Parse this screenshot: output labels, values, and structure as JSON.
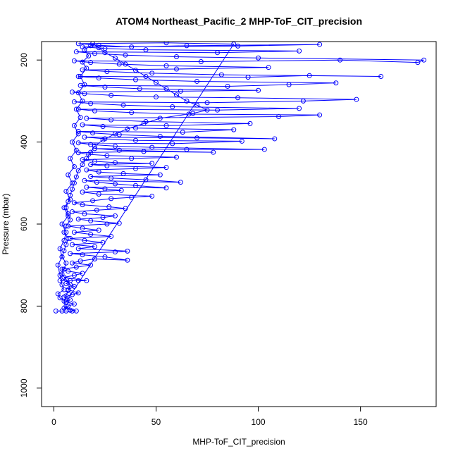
{
  "chart_data": {
    "type": "scatter",
    "title": "ATOM4 Northeast_Pacific_2 MHP-ToF_CIT_precision",
    "xlabel": "MHP-ToF_CIT_precision",
    "ylabel": "Pressure (mbar)",
    "xlim": [
      -6,
      187
    ],
    "ylim": [
      1045,
      155
    ],
    "y_reversed": true,
    "x_ticks": [
      0,
      50,
      100,
      150
    ],
    "y_ticks": [
      200,
      400,
      600,
      800,
      1000
    ],
    "grid": false,
    "legend": "none",
    "marker": "open-circle",
    "connect_points": true,
    "color": "#0000ff",
    "series": [
      {
        "values": [
          [
            1,
            812
          ],
          [
            4,
            812
          ],
          [
            6,
            812
          ],
          [
            9,
            812
          ],
          [
            11,
            812
          ],
          [
            5,
            805
          ],
          [
            7,
            800
          ],
          [
            10,
            795
          ],
          [
            6,
            790
          ],
          [
            8,
            785
          ],
          [
            5,
            778
          ],
          [
            9,
            772
          ],
          [
            12,
            768
          ],
          [
            7,
            760
          ],
          [
            10,
            752
          ],
          [
            6,
            745
          ],
          [
            8,
            738
          ],
          [
            3,
            738
          ],
          [
            12,
            738
          ],
          [
            16,
            738
          ],
          [
            5,
            730
          ],
          [
            10,
            725
          ],
          [
            14,
            720
          ],
          [
            7,
            715
          ],
          [
            4,
            710
          ],
          [
            11,
            705
          ],
          [
            18,
            700
          ],
          [
            9,
            695
          ],
          [
            13,
            690
          ],
          [
            20,
            685
          ],
          [
            36,
            688
          ],
          [
            25,
            680
          ],
          [
            14,
            675
          ],
          [
            8,
            672
          ],
          [
            30,
            668
          ],
          [
            36,
            666
          ],
          [
            12,
            660
          ],
          [
            20,
            655
          ],
          [
            9,
            650
          ],
          [
            24,
            645
          ],
          [
            15,
            640
          ],
          [
            8,
            635
          ],
          [
            28,
            630
          ],
          [
            18,
            625
          ],
          [
            10,
            620
          ],
          [
            22,
            615
          ],
          [
            14,
            610
          ],
          [
            7,
            605
          ],
          [
            26,
            600
          ],
          [
            32,
            598
          ],
          [
            18,
            592
          ],
          [
            12,
            588
          ],
          [
            24,
            584
          ],
          [
            30,
            580
          ],
          [
            15,
            575
          ],
          [
            9,
            570
          ],
          [
            21,
            566
          ],
          [
            35,
            562
          ],
          [
            27,
            558
          ],
          [
            14,
            553
          ],
          [
            10,
            548
          ],
          [
            19,
            543
          ],
          [
            28,
            538
          ],
          [
            38,
            535
          ],
          [
            48,
            532
          ],
          [
            22,
            527
          ],
          [
            14,
            522
          ],
          [
            33,
            518
          ],
          [
            25,
            514
          ],
          [
            16,
            510
          ],
          [
            55,
            512
          ],
          [
            40,
            506
          ],
          [
            30,
            502
          ],
          [
            21,
            498
          ],
          [
            15,
            494
          ],
          [
            62,
            498
          ],
          [
            45,
            492
          ],
          [
            28,
            488
          ],
          [
            18,
            484
          ],
          [
            52,
            480
          ],
          [
            34,
            477
          ],
          [
            22,
            473
          ],
          [
            16,
            468
          ],
          [
            40,
            465
          ],
          [
            55,
            462
          ],
          [
            26,
            458
          ],
          [
            18,
            455
          ],
          [
            48,
            452
          ],
          [
            30,
            450
          ],
          [
            20,
            447
          ],
          [
            14,
            443
          ],
          [
            38,
            440
          ],
          [
            60,
            437
          ],
          [
            26,
            433
          ],
          [
            17,
            430
          ],
          [
            12,
            426
          ],
          [
            44,
            423
          ],
          [
            78,
            425
          ],
          [
            32,
            420
          ],
          [
            20,
            416
          ],
          [
            65,
            418
          ],
          [
            103,
            418
          ],
          [
            48,
            413
          ],
          [
            30,
            410
          ],
          [
            18,
            406
          ],
          [
            12,
            402
          ],
          [
            58,
            404
          ],
          [
            92,
            398
          ],
          [
            40,
            396
          ],
          [
            25,
            392
          ],
          [
            15,
            388
          ],
          [
            70,
            390
          ],
          [
            108,
            392
          ],
          [
            52,
            386
          ],
          [
            32,
            382
          ],
          [
            19,
            378
          ],
          [
            12,
            374
          ],
          [
            63,
            376
          ],
          [
            88,
            370
          ],
          [
            40,
            366
          ],
          [
            24,
            362
          ],
          [
            14,
            358
          ],
          [
            55,
            360
          ],
          [
            96,
            355
          ],
          [
            45,
            350
          ],
          [
            28,
            346
          ],
          [
            16,
            342
          ],
          [
            110,
            338
          ],
          [
            130,
            334
          ],
          [
            66,
            332
          ],
          [
            38,
            328
          ],
          [
            20,
            324
          ],
          [
            12,
            320
          ],
          [
            80,
            322
          ],
          [
            120,
            318
          ],
          [
            58,
            314
          ],
          [
            34,
            310
          ],
          [
            18,
            306
          ],
          [
            10,
            302
          ],
          [
            75,
            304
          ],
          [
            122,
            300
          ],
          [
            148,
            296
          ],
          [
            90,
            292
          ],
          [
            50,
            290
          ],
          [
            28,
            286
          ],
          [
            15,
            282
          ],
          [
            9,
            278
          ],
          [
            62,
            276
          ],
          [
            100,
            274
          ],
          [
            42,
            270
          ],
          [
            25,
            266
          ],
          [
            13,
            262
          ],
          [
            85,
            264
          ],
          [
            115,
            260
          ],
          [
            138,
            256
          ],
          [
            70,
            252
          ],
          [
            40,
            248
          ],
          [
            22,
            244
          ],
          [
            12,
            240
          ],
          [
            95,
            242
          ],
          [
            125,
            238
          ],
          [
            160,
            240
          ],
          [
            82,
            236
          ],
          [
            48,
            232
          ],
          [
            26,
            228
          ],
          [
            14,
            224
          ],
          [
            60,
            222
          ],
          [
            105,
            218
          ],
          [
            55,
            214
          ],
          [
            32,
            210
          ],
          [
            18,
            206
          ],
          [
            10,
            202
          ],
          [
            72,
            204
          ],
          [
            140,
            200
          ],
          [
            178,
            206
          ],
          [
            181,
            200
          ],
          [
            100,
            195
          ],
          [
            60,
            192
          ],
          [
            35,
            188
          ],
          [
            20,
            184
          ],
          [
            11,
            180
          ],
          [
            80,
            182
          ],
          [
            120,
            178
          ],
          [
            45,
            175
          ],
          [
            25,
            172
          ],
          [
            14,
            168
          ],
          [
            90,
            166
          ],
          [
            130,
            162
          ],
          [
            65,
            165
          ],
          [
            38,
            168
          ],
          [
            22,
            164
          ],
          [
            12,
            160
          ],
          [
            55,
            158
          ],
          [
            88,
            161
          ],
          [
            6,
            790
          ],
          [
            3,
            780
          ],
          [
            2,
            770
          ],
          [
            5,
            760
          ],
          [
            4,
            748
          ],
          [
            3,
            725
          ],
          [
            2,
            700
          ],
          [
            4,
            680
          ],
          [
            3,
            660
          ],
          [
            5,
            640
          ],
          [
            6,
            620
          ],
          [
            4,
            600
          ],
          [
            7,
            580
          ],
          [
            5,
            560
          ],
          [
            8,
            540
          ],
          [
            6,
            520
          ],
          [
            9,
            500
          ],
          [
            7,
            480
          ],
          [
            10,
            460
          ],
          [
            8,
            440
          ],
          [
            11,
            420
          ],
          [
            9,
            400
          ],
          [
            12,
            380
          ],
          [
            10,
            360
          ],
          [
            13,
            340
          ],
          [
            11,
            320
          ],
          [
            14,
            300
          ],
          [
            12,
            280
          ],
          [
            15,
            260
          ],
          [
            13,
            240
          ],
          [
            16,
            220
          ],
          [
            14,
            205
          ],
          [
            17,
            190
          ],
          [
            15,
            175
          ],
          [
            18,
            165
          ],
          [
            19,
            160
          ],
          [
            22,
            170
          ],
          [
            25,
            182
          ],
          [
            30,
            195
          ],
          [
            35,
            210
          ],
          [
            40,
            225
          ],
          [
            45,
            240
          ],
          [
            50,
            255
          ],
          [
            55,
            270
          ],
          [
            60,
            285
          ],
          [
            65,
            300
          ],
          [
            70,
            310
          ],
          [
            75,
            322
          ],
          [
            68,
            330
          ],
          [
            52,
            342
          ],
          [
            44,
            355
          ],
          [
            36,
            368
          ],
          [
            30,
            380
          ],
          [
            24,
            395
          ],
          [
            20,
            410
          ],
          [
            18,
            425
          ],
          [
            16,
            440
          ],
          [
            14,
            455
          ],
          [
            12,
            470
          ],
          [
            11,
            485
          ],
          [
            10,
            500
          ],
          [
            9,
            515
          ],
          [
            8,
            530
          ],
          [
            7,
            545
          ],
          [
            6,
            560
          ],
          [
            7,
            575
          ],
          [
            8,
            590
          ],
          [
            6,
            605
          ],
          [
            5,
            620
          ],
          [
            7,
            635
          ],
          [
            6,
            650
          ],
          [
            5,
            665
          ],
          [
            4,
            680
          ],
          [
            6,
            695
          ],
          [
            5,
            710
          ],
          [
            4,
            722
          ],
          [
            6,
            735
          ],
          [
            8,
            748
          ],
          [
            7,
            762
          ],
          [
            6,
            775
          ],
          [
            5,
            788
          ],
          [
            6,
            800
          ],
          [
            8,
            810
          ]
        ]
      }
    ]
  }
}
